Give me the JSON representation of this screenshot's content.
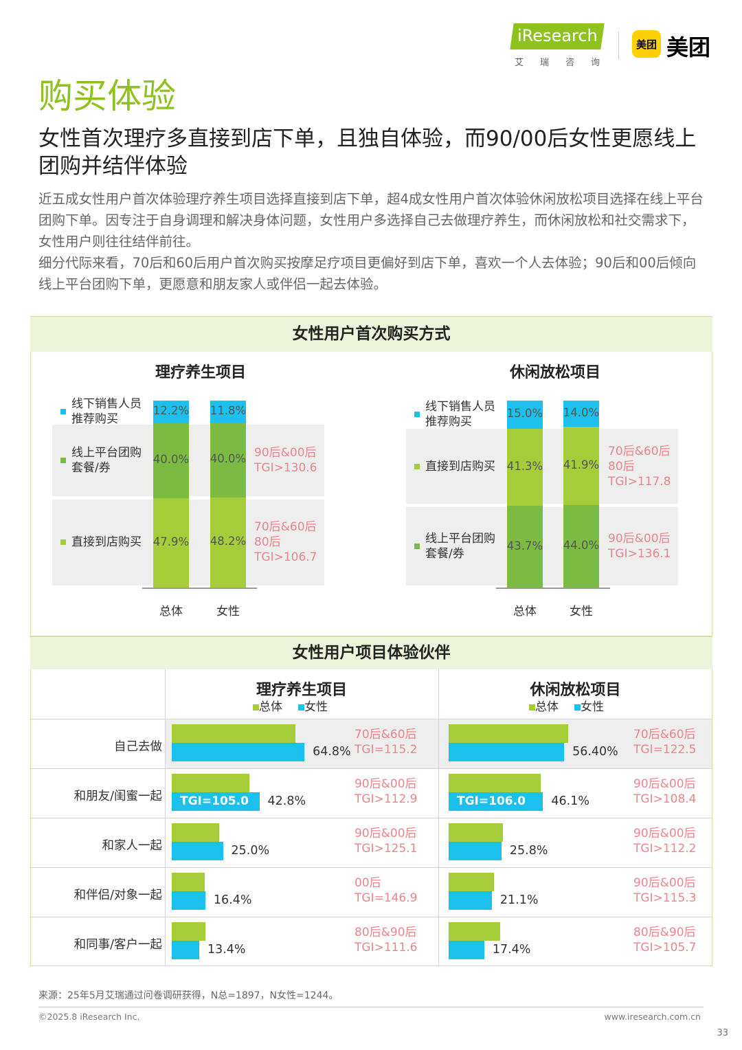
{
  "header": {
    "iresearch_logo_text": "iResearch",
    "iresearch_logo_sub": "艾瑞咨询",
    "meituan_badge": "美团",
    "meituan_text": "美团"
  },
  "page_title": "购买体验",
  "headline": "女性首次理疗多直接到店下单，且独自体验，而90/00后女性更愿线上团购并结伴体验",
  "intro": [
    "近五成女性用户首次体验理疗养生项目选择直接到店下单，超4成女性用户首次体验休闲放松项目选择在线上平台团购下单。因专注于自身调理和解决身体问题，女性用户多选择自己去做理疗养生，而休闲放松和社交需求下，女性用户则往往结伴前往。",
    "细分代际来看，70后和60后用户首次购买按摩足疗项目更偏好到店下单，喜欢一个人去体验；90后和00后倾向线上平台团购下单，更愿意和朋友家人或伴侣一起去体验。"
  ],
  "colors": {
    "light_green": "#a5cd39",
    "dark_green": "#7bbb42",
    "blue": "#1cc0ec",
    "tgi_pink": "#e8868c",
    "band_bg": "#ecf4dc"
  },
  "section1_title": "女性用户首次购买方式",
  "section2_title": "女性用户项目体验伙伴",
  "legend2": {
    "total": "总体",
    "female": "女性"
  },
  "chart_data": [
    {
      "type": "bar",
      "stacked": true,
      "title": "理疗养生项目",
      "categories": [
        "总体",
        "女性"
      ],
      "series": [
        {
          "name": "直接到店购买",
          "values": [
            47.9,
            48.2
          ],
          "labels": [
            "47.9%",
            "48.2%"
          ],
          "color": "#a5cd39",
          "legend": [
            "直接到店购买"
          ],
          "tgi": [
            "70后&60后",
            "80后",
            "TGI>106.7"
          ]
        },
        {
          "name": "线上平台团购套餐/券",
          "values": [
            40.0,
            40.0
          ],
          "labels": [
            "40.0%",
            "40.0%"
          ],
          "color": "#7bbb42",
          "legend": [
            "线上平台团购",
            "套餐/券"
          ],
          "tgi": [
            "90后&00后",
            "TGI>130.6"
          ]
        },
        {
          "name": "线下销售人员推荐购买",
          "values": [
            12.2,
            11.8
          ],
          "labels": [
            "12.2%",
            "11.8%"
          ],
          "color": "#1cc0ec",
          "legend": [
            "线下销售人员",
            "推荐购买"
          ],
          "tgi": []
        }
      ]
    },
    {
      "type": "bar",
      "stacked": true,
      "title": "休闲放松项目",
      "categories": [
        "总体",
        "女性"
      ],
      "series": [
        {
          "name": "线上平台团购套餐/券",
          "values": [
            43.7,
            44.0
          ],
          "labels": [
            "43.7%",
            "44.0%"
          ],
          "color": "#7bbb42",
          "legend": [
            "线上平台团购",
            "套餐/券"
          ],
          "tgi": [
            "90后&00后",
            "TGI>136.1"
          ]
        },
        {
          "name": "直接到店购买",
          "values": [
            41.3,
            41.9
          ],
          "labels": [
            "41.3%",
            "41.9%"
          ],
          "color": "#a5cd39",
          "legend": [
            "直接到店购买"
          ],
          "tgi": [
            "70后&60后",
            "80后",
            "TGI>117.8"
          ]
        },
        {
          "name": "线下销售人员推荐购买",
          "values": [
            15.0,
            14.0
          ],
          "labels": [
            "15.0%",
            "14.0%"
          ],
          "color": "#1cc0ec",
          "legend": [
            "线下销售人员",
            "推荐购买"
          ],
          "tgi": []
        }
      ]
    },
    {
      "type": "bar",
      "orientation": "horizontal",
      "title": "理疗养生项目",
      "categories": [
        "自己去做",
        "和朋友/闺蜜一起",
        "和家人一起",
        "和伴侣/对象一起",
        "和同事/客户一起"
      ],
      "series": [
        {
          "name": "总体",
          "values": [
            60.5,
            38.0,
            23.0,
            16.0,
            16.5
          ]
        },
        {
          "name": "女性",
          "values": [
            64.8,
            42.8,
            25.0,
            16.4,
            13.4
          ],
          "labels": [
            "64.8%",
            "42.8%",
            "25.0%",
            "16.4%",
            "13.4%"
          ]
        }
      ],
      "inner_labels": [
        "",
        "TGI=105.0",
        "",
        "",
        ""
      ],
      "tgi": [
        [
          "70后&60后",
          "TGI=115.2"
        ],
        [
          "90后&00后",
          "TGI>112.9"
        ],
        [
          "90后&00后",
          "TGI>125.1"
        ],
        [
          "00后",
          "TGI=146.9"
        ],
        [
          "80后&90后",
          "TGI>111.6"
        ]
      ]
    },
    {
      "type": "bar",
      "orientation": "horizontal",
      "title": "休闲放松项目",
      "categories": [
        "自己去做",
        "和朋友/闺蜜一起",
        "和家人一起",
        "和伴侣/对象一起",
        "和同事/客户一起"
      ],
      "series": [
        {
          "name": "总体",
          "values": [
            58.5,
            45.0,
            26.5,
            22.0,
            25.0
          ]
        },
        {
          "name": "女性",
          "values": [
            56.4,
            46.1,
            25.8,
            21.1,
            17.4
          ],
          "labels": [
            "56.40%",
            "46.1%",
            "25.8%",
            "21.1%",
            "17.4%"
          ]
        }
      ],
      "inner_labels": [
        "",
        "TGI=106.0",
        "",
        "",
        ""
      ],
      "tgi": [
        [
          "70后&60后",
          "TGI=122.5"
        ],
        [
          "90后&00后",
          "TGI>108.4"
        ],
        [
          "90后&00后",
          "TGI>112.2"
        ],
        [
          "90后&00后",
          "TGI>115.3"
        ],
        [
          "80后&90后",
          "TGI>105.7"
        ]
      ]
    }
  ],
  "source": "来源：25年5月艾瑞通过问卷调研获得，N总=1897，N女性=1244。",
  "footer": {
    "copyright": "©2025.8 iResearch Inc.",
    "website": "www.iresearch.com.cn",
    "page_number": "33"
  }
}
